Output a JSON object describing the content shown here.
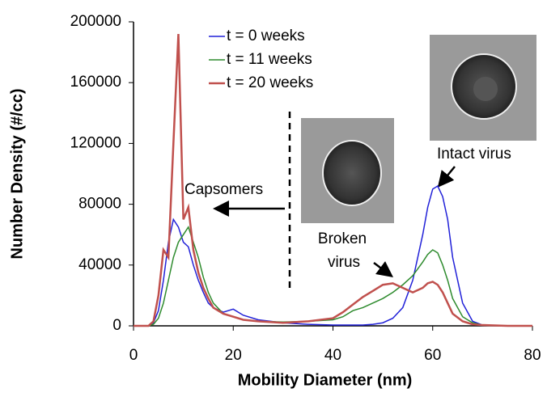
{
  "chart_data": {
    "type": "line",
    "xlabel": "Mobility Diameter (nm)",
    "ylabel": "Number Density (#/cc)",
    "x": [
      0,
      2,
      3,
      4,
      5,
      6,
      7,
      8,
      9,
      10,
      11,
      12,
      13,
      14,
      15,
      16,
      18,
      20,
      22,
      25,
      30,
      35,
      40,
      42,
      44,
      46,
      48,
      50,
      52,
      54,
      56,
      58,
      59,
      60,
      61,
      62,
      63,
      64,
      66,
      68,
      70,
      75,
      80
    ],
    "series": [
      {
        "name": "t = 0 weeks",
        "color": "#2121d8",
        "values": [
          0,
          0,
          0,
          2000,
          10000,
          30000,
          55000,
          70000,
          65000,
          55000,
          52000,
          40000,
          30000,
          22000,
          15000,
          12000,
          9000,
          11000,
          7000,
          4000,
          2000,
          1000,
          500,
          500,
          500,
          500,
          1000,
          2000,
          5000,
          12000,
          30000,
          60000,
          78000,
          90000,
          92000,
          85000,
          70000,
          45000,
          15000,
          3000,
          500,
          0,
          0
        ]
      },
      {
        "name": "t = 11 weeks",
        "color": "#2e8b2e",
        "values": [
          0,
          0,
          0,
          1000,
          5000,
          15000,
          30000,
          45000,
          55000,
          60000,
          65000,
          55000,
          45000,
          32000,
          22000,
          15000,
          8000,
          6000,
          4000,
          3000,
          2500,
          3000,
          4000,
          6000,
          10000,
          12000,
          15000,
          18000,
          22000,
          27000,
          33000,
          42000,
          47000,
          50000,
          48000,
          40000,
          30000,
          18000,
          6000,
          2000,
          500,
          0,
          0
        ]
      },
      {
        "name": "t = 20 weeks",
        "color": "#c0504d",
        "values": [
          0,
          0,
          0,
          3000,
          20000,
          50000,
          45000,
          120000,
          192000,
          70000,
          78000,
          50000,
          35000,
          25000,
          18000,
          12000,
          8000,
          6000,
          4000,
          3000,
          2000,
          3000,
          5000,
          9000,
          14000,
          19000,
          23000,
          27000,
          28000,
          25000,
          22000,
          25000,
          28000,
          29000,
          27000,
          22000,
          15000,
          8000,
          3000,
          1000,
          500,
          0,
          0
        ]
      }
    ],
    "annotations": [
      "Capsomers",
      "Intact virus",
      "Broken",
      "virus"
    ],
    "xlim": [
      0,
      80
    ],
    "xticks": [
      0,
      20,
      40,
      60,
      80
    ],
    "ylim": [
      0,
      200000
    ],
    "yticks": [
      0,
      40000,
      80000,
      120000,
      160000,
      200000
    ]
  }
}
